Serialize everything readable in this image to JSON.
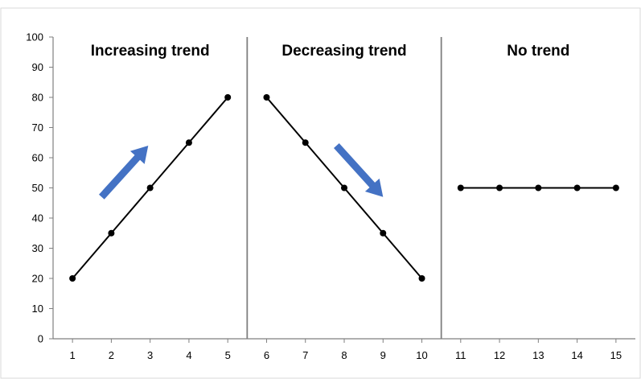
{
  "chart_data": {
    "type": "line",
    "xlabel": "",
    "ylabel": "",
    "xlim": [
      0.5,
      15.5
    ],
    "ylim": [
      0,
      100
    ],
    "y_ticks": [
      0,
      10,
      20,
      30,
      40,
      50,
      60,
      70,
      80,
      90,
      100
    ],
    "x_ticks": [
      1,
      2,
      3,
      4,
      5,
      6,
      7,
      8,
      9,
      10,
      11,
      12,
      13,
      14,
      15
    ],
    "grid": false,
    "panel_dividers_x": [
      5.5,
      10.5
    ],
    "panels": [
      {
        "title": "Increasing trend",
        "center_x": 3
      },
      {
        "title": "Decreasing trend",
        "center_x": 8
      },
      {
        "title": "No trend",
        "center_x": 13
      }
    ],
    "series": [
      {
        "x": [
          1,
          2,
          3,
          4,
          5
        ],
        "y": [
          20,
          35,
          50,
          65,
          80
        ]
      },
      {
        "x": [
          6,
          7,
          8,
          9,
          10
        ],
        "y": [
          80,
          65,
          50,
          35,
          20
        ]
      },
      {
        "x": [
          11,
          12,
          13,
          14,
          15
        ],
        "y": [
          50,
          50,
          50,
          50,
          50
        ]
      }
    ],
    "annotations": [
      {
        "kind": "arrow",
        "from": [
          1.75,
          47
        ],
        "to": [
          2.95,
          64
        ],
        "color": "#4472c4"
      },
      {
        "kind": "arrow",
        "from": [
          7.8,
          64
        ],
        "to": [
          9.0,
          47
        ],
        "color": "#4472c4"
      }
    ],
    "colors": {
      "line": "#000000",
      "marker": "#000000",
      "arrow": "#4472c4",
      "divider": "#7f7f7f",
      "axis": "#7f7f7f",
      "frame": "#d9d9d9"
    }
  }
}
